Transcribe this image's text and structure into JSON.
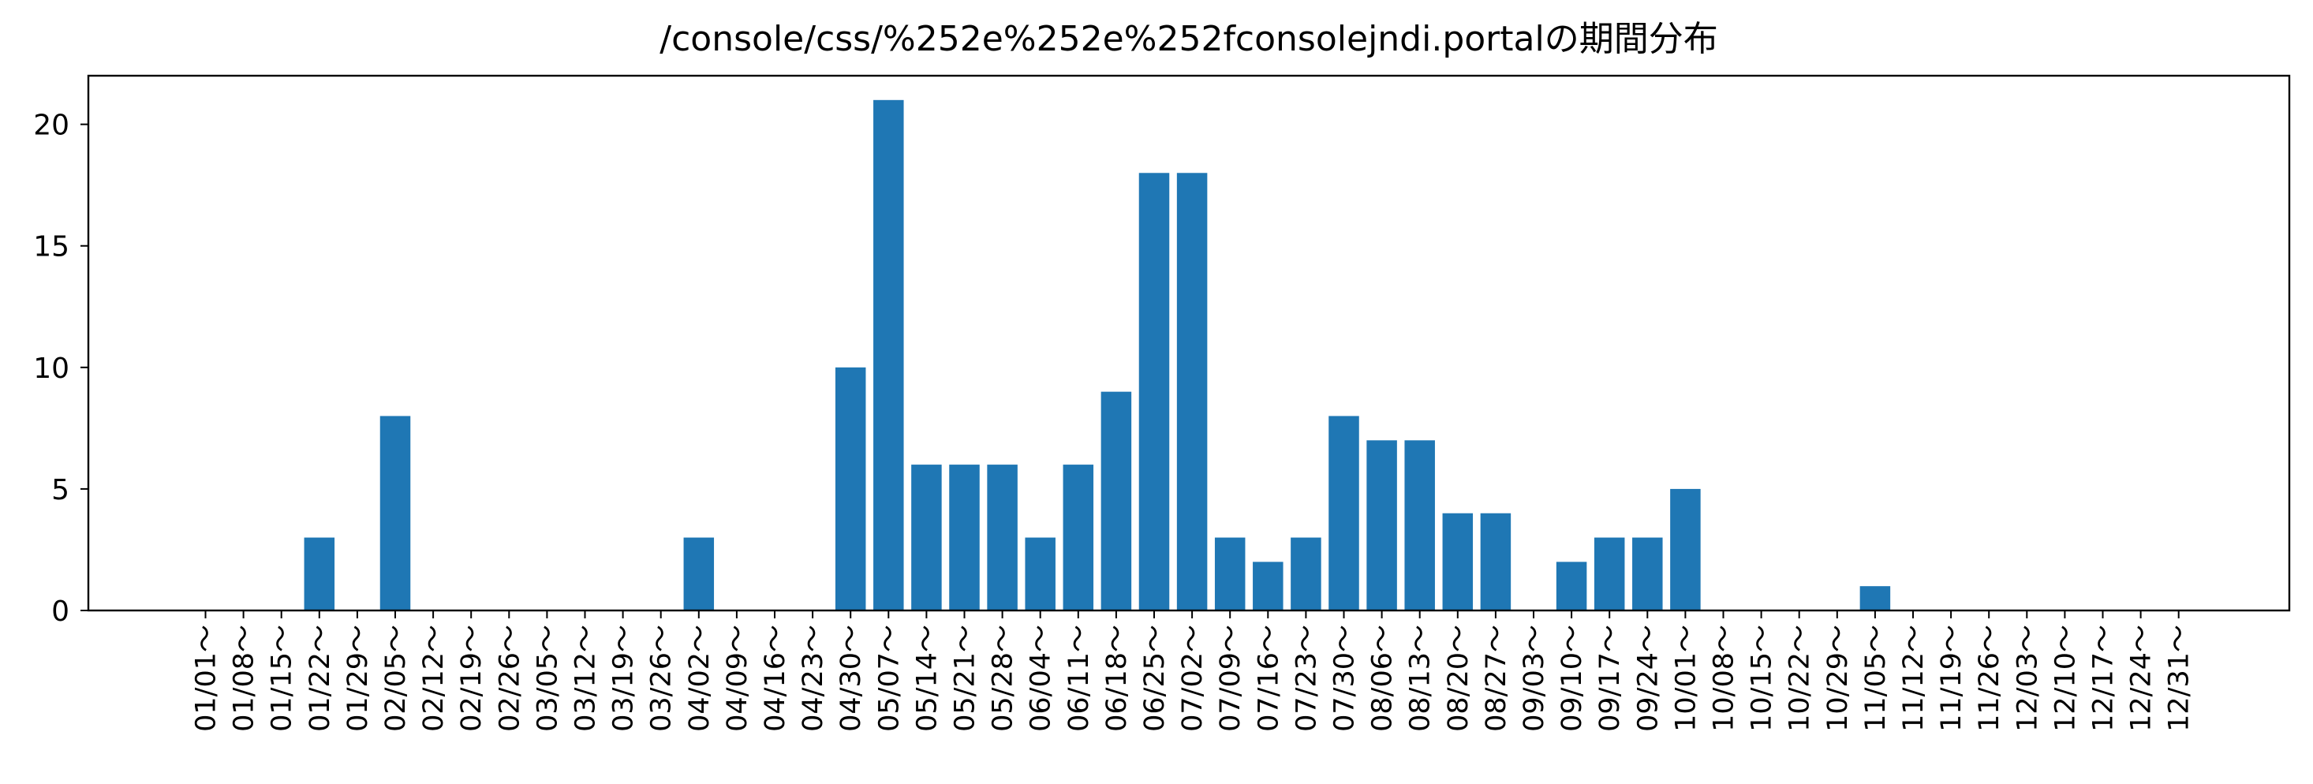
{
  "chart_data": {
    "type": "bar",
    "title": "/console/css/%252e%252e%252fconsolejndi.portalの期間分布",
    "xlabel": "",
    "ylabel": "",
    "ylim": [
      0,
      22
    ],
    "yticks": [
      0,
      5,
      10,
      15,
      20
    ],
    "grid": false,
    "legend": "none",
    "bar_color": "#1f77b4",
    "categories": [
      "01/01～",
      "01/08～",
      "01/15～",
      "01/22～",
      "01/29～",
      "02/05～",
      "02/12～",
      "02/19～",
      "02/26～",
      "03/05～",
      "03/12～",
      "03/19～",
      "03/26～",
      "04/02～",
      "04/09～",
      "04/16～",
      "04/23～",
      "04/30～",
      "05/07～",
      "05/14～",
      "05/21～",
      "05/28～",
      "06/04～",
      "06/11～",
      "06/18～",
      "06/25～",
      "07/02～",
      "07/09～",
      "07/16～",
      "07/23～",
      "07/30～",
      "08/06～",
      "08/13～",
      "08/20～",
      "08/27～",
      "09/03～",
      "09/10～",
      "09/17～",
      "09/24～",
      "10/01～",
      "10/08～",
      "10/15～",
      "10/22～",
      "10/29～",
      "11/05～",
      "11/12～",
      "11/19～",
      "11/26～",
      "12/03～",
      "12/10～",
      "12/17～",
      "12/24～",
      "12/31～"
    ],
    "values": [
      0,
      0,
      0,
      3,
      0,
      8,
      0,
      0,
      0,
      0,
      0,
      0,
      0,
      3,
      0,
      0,
      0,
      10,
      21,
      6,
      6,
      6,
      3,
      6,
      9,
      18,
      18,
      3,
      2,
      3,
      8,
      7,
      7,
      4,
      4,
      0,
      2,
      3,
      3,
      5,
      0,
      0,
      0,
      0,
      1,
      0,
      0,
      0,
      0,
      0,
      0,
      0,
      0
    ]
  }
}
